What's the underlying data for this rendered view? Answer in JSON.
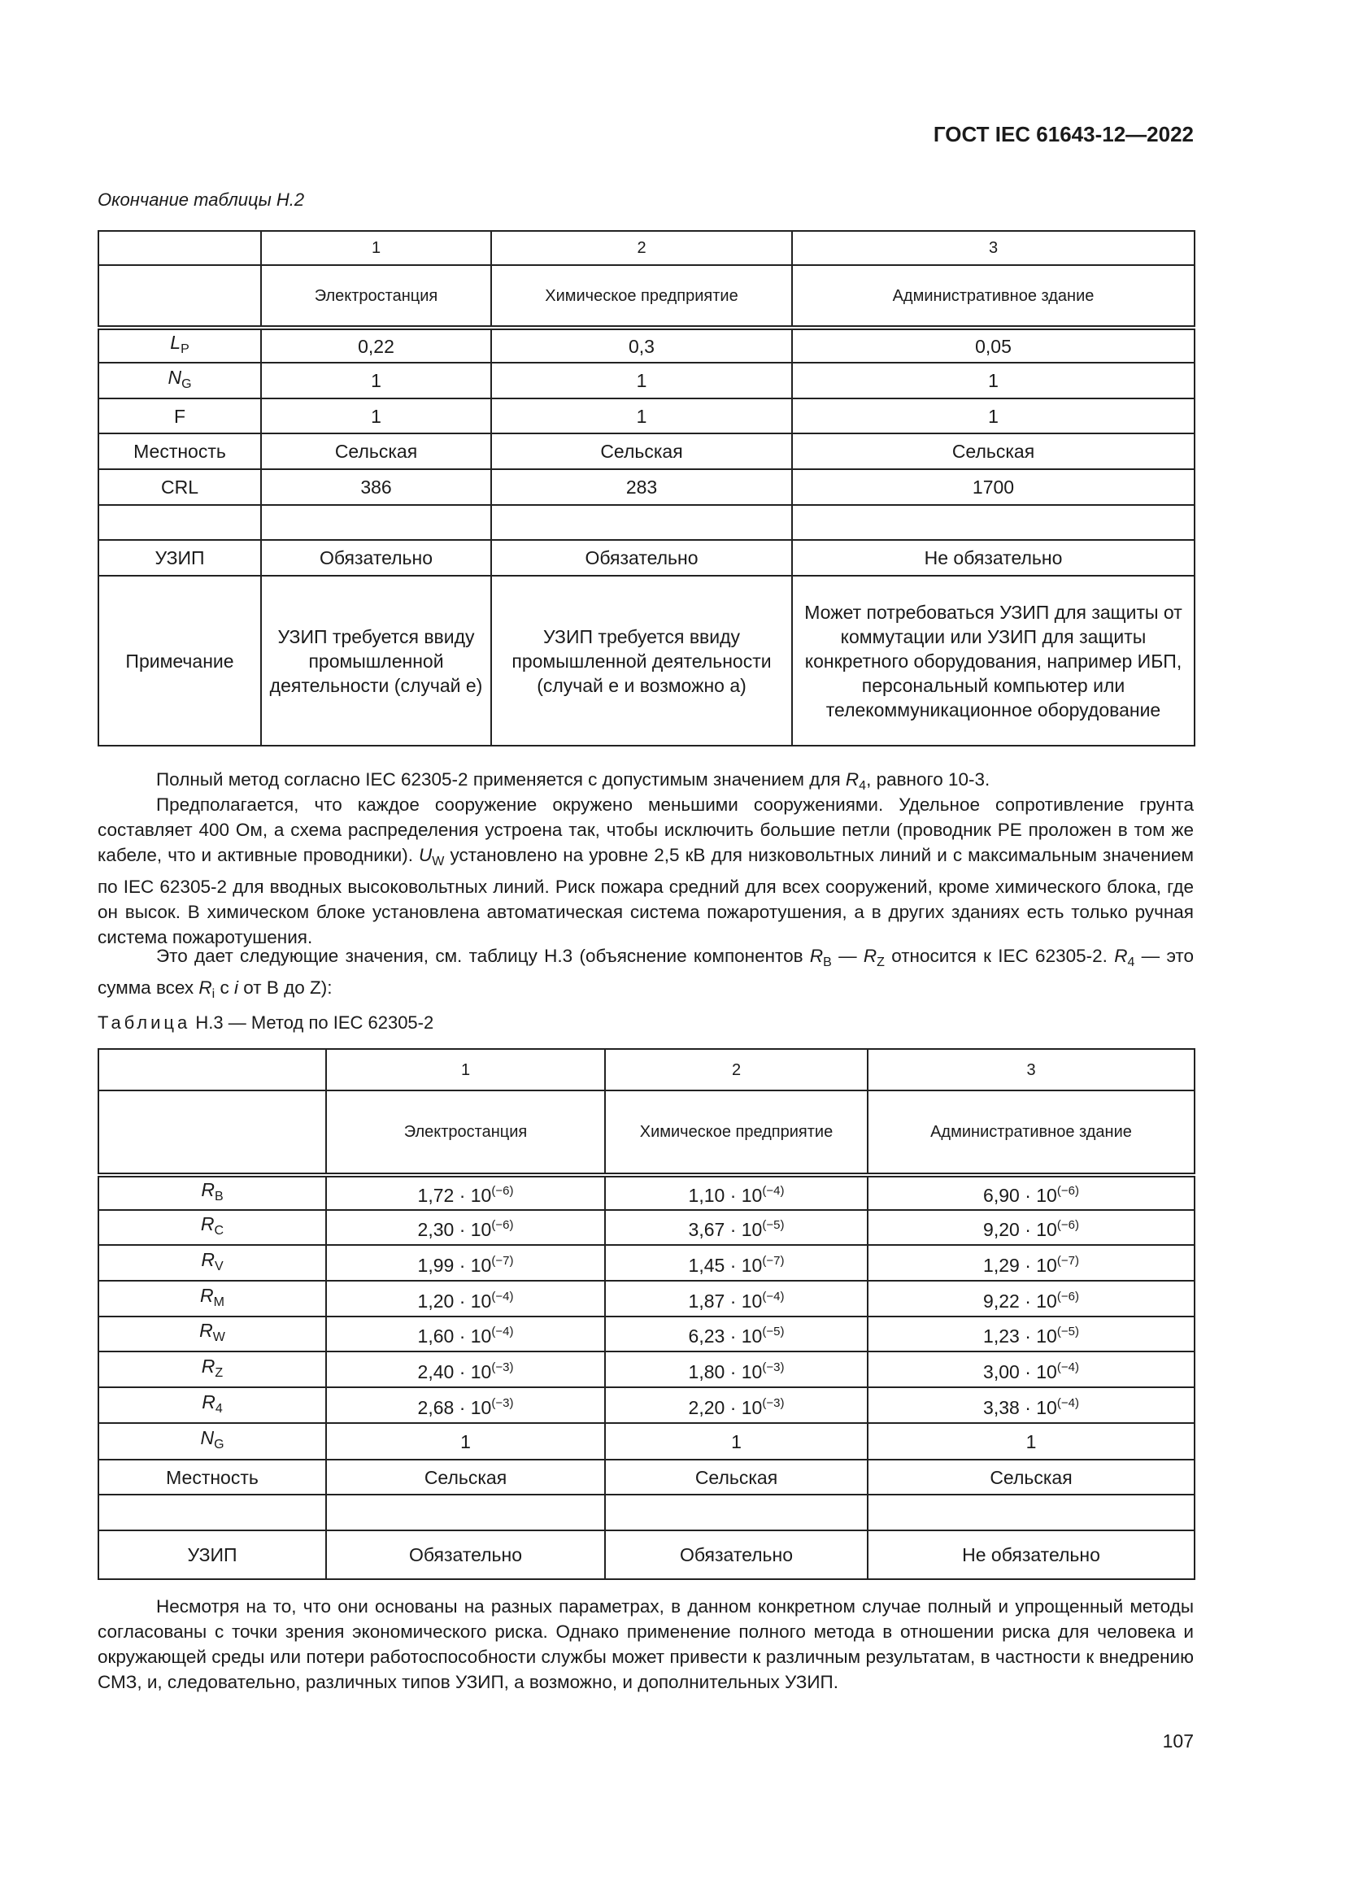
{
  "header": {
    "doc_id": "ГОСТ IEC 61643-12—2022"
  },
  "table1": {
    "caption": "Окончание таблицы Н.2",
    "col_numbers": [
      "",
      "1",
      "2",
      "3"
    ],
    "col_names": [
      "",
      "Электростанция",
      "Химическое предприятие",
      "Административное здание"
    ],
    "rows": [
      {
        "label": {
          "sym": "L",
          "sub": "P"
        },
        "cells": [
          "0,22",
          "0,3",
          "0,05"
        ]
      },
      {
        "label": {
          "sym": "N",
          "sub": "G"
        },
        "cells": [
          "1",
          "1",
          "1"
        ]
      },
      {
        "label": {
          "text": "F"
        },
        "cells": [
          "1",
          "1",
          "1"
        ]
      },
      {
        "label": {
          "text": "Местность"
        },
        "cells": [
          "Сельская",
          "Сельская",
          "Сельская"
        ]
      },
      {
        "label": {
          "text": "CRL"
        },
        "cells": [
          "386",
          "283",
          "1700"
        ]
      },
      {
        "label": {
          "text": ""
        },
        "cells": [
          "",
          "",
          ""
        ]
      },
      {
        "label": {
          "text": "УЗИП"
        },
        "cells": [
          "Обязательно",
          "Обязательно",
          "Не обязательно"
        ]
      },
      {
        "label": {
          "text": "Примечание"
        },
        "cells": [
          "УЗИП требуется ввиду промышленной деятельности (случай е)",
          "УЗИП требуется ввиду промышленной деятельности (случай е и возможно а)",
          "Может потребоваться УЗИП для защиты от коммутации или УЗИП для защиты конкретного оборудования, например ИБП, персональный компьютер или телекоммуникационное оборудование"
        ]
      }
    ]
  },
  "paragraphs": {
    "p1": [
      "Полный метод согласно IEC 62305-2 применяется с допустимым значением для ",
      "R",
      "4",
      ", равного 10-3."
    ],
    "p2": [
      "Предполагается, что каждое сооружение окружено меньшими сооружениями. Удельное сопротивление грунта составляет 400 Ом, а схема распределения устроена так, чтобы исключить большие петли (проводник PE проложен в том же кабеле, что и активные проводники). ",
      "U",
      "W",
      " установлено на уровне 2,5 кВ для низковольтных линий и с максимальным значением по IEC 62305-2 для вводных высоковольтных линий. Риск пожара средний для всех сооружений, кроме химического блока, где он высок. В химическом блоке установлена автоматическая система пожаротушения, а в других зданиях есть только ручная система пожаротушения."
    ],
    "p3": [
      "Это дает следующие значения, см. таблицу Н.3 (объяснение компонентов ",
      "R",
      "B",
      " — ",
      "R",
      "Z",
      " относится к IEC 62305-2. ",
      "R",
      "4",
      " — это сумма всех ",
      "R",
      "i",
      " с ",
      "i",
      " от B до Z):"
    ],
    "p4": "Несмотря на то, что они основаны на разных параметрах, в данном конкретном случае полный и упрощенный методы согласованы с точки зрения экономического риска. Однако применение полного метода в отношении риска для человека и окружающей среды или потери работоспособности службы может привести к различным результатам, в частности к внедрению СМЗ, и, следовательно, различных типов УЗИП, а возможно, и дополнительных УЗИП."
  },
  "table2": {
    "caption_prefix": "Таблица",
    "caption_rest": " Н.3 — Метод по IEC 62305-2",
    "col_numbers": [
      "",
      "1",
      "2",
      "3"
    ],
    "col_names": [
      "",
      "Электростанция",
      "Химическое предприятие",
      "Административное здание"
    ],
    "rows": [
      {
        "label": {
          "sym": "R",
          "sub": "B"
        },
        "cells": [
          {
            "m": "1,72 · 10",
            "e": "(−6)"
          },
          {
            "m": "1,10 · 10",
            "e": "(−4)"
          },
          {
            "m": "6,90 · 10",
            "e": "(−6)"
          }
        ]
      },
      {
        "label": {
          "sym": "R",
          "sub": "C"
        },
        "cells": [
          {
            "m": "2,30 · 10",
            "e": "(−6)"
          },
          {
            "m": "3,67 · 10",
            "e": "(−5)"
          },
          {
            "m": "9,20 · 10",
            "e": "(−6)"
          }
        ]
      },
      {
        "label": {
          "sym": "R",
          "sub": "V"
        },
        "cells": [
          {
            "m": "1,99 · 10",
            "e": "(−7)"
          },
          {
            "m": "1,45 · 10",
            "e": "(−7)"
          },
          {
            "m": "1,29 · 10",
            "e": "(−7)"
          }
        ]
      },
      {
        "label": {
          "sym": "R",
          "sub": "M"
        },
        "cells": [
          {
            "m": "1,20 · 10",
            "e": "(−4)"
          },
          {
            "m": "1,87 · 10",
            "e": "(−4)"
          },
          {
            "m": "9,22 · 10",
            "e": "(−6)"
          }
        ]
      },
      {
        "label": {
          "sym": "R",
          "sub": "W"
        },
        "cells": [
          {
            "m": "1,60 · 10",
            "e": "(−4)"
          },
          {
            "m": "6,23 · 10",
            "e": "(−5)"
          },
          {
            "m": "1,23 · 10",
            "e": "(−5)"
          }
        ]
      },
      {
        "label": {
          "sym": "R",
          "sub": "Z"
        },
        "cells": [
          {
            "m": "2,40 · 10",
            "e": "(−3)"
          },
          {
            "m": "1,80 · 10",
            "e": "(−3)"
          },
          {
            "m": "3,00 · 10",
            "e": "(−4)"
          }
        ]
      },
      {
        "label": {
          "sym": "R",
          "sub": "4"
        },
        "cells": [
          {
            "m": "2,68 · 10",
            "e": "(−3)"
          },
          {
            "m": "2,20 · 10",
            "e": "(−3)"
          },
          {
            "m": "3,38 · 10",
            "e": "(−4)"
          }
        ]
      },
      {
        "label": {
          "sym": "N",
          "sub": "G"
        },
        "cells": [
          "1",
          "1",
          "1"
        ]
      },
      {
        "label": {
          "text": "Местность"
        },
        "cells": [
          "Сельская",
          "Сельская",
          "Сельская"
        ]
      },
      {
        "label": {
          "text": ""
        },
        "cells": [
          "",
          "",
          ""
        ]
      },
      {
        "label": {
          "text": "УЗИП"
        },
        "cells": [
          "Обязательно",
          "Обязательно",
          "Не обязательно"
        ]
      }
    ]
  },
  "footer": {
    "page_number": "107"
  }
}
